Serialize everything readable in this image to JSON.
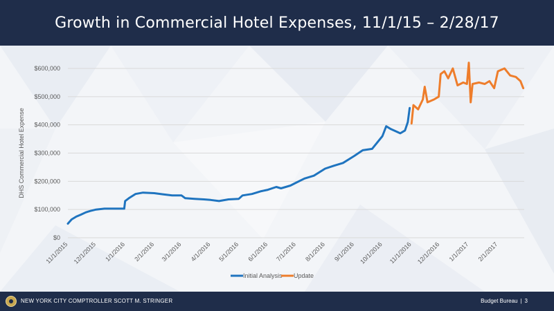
{
  "header": {
    "title": "Growth in Commercial Hotel Expenses, 11/1/15 – 2/28/17"
  },
  "footer": {
    "org": "NEW YORK CITY COMPTROLLER SCOTT M. STRINGER",
    "bureau": "Budget Bureau",
    "page": "3"
  },
  "colors": {
    "initial": "#1f74bf",
    "update": "#ee7d2b",
    "grid": "#d9d9d9",
    "header_bg": "#1f2d4a"
  },
  "chart_data": {
    "type": "line",
    "title": "",
    "xlabel": "",
    "ylabel": "DHS Commercial Hotel Expense",
    "ylim": [
      0,
      600000
    ],
    "yticks": [
      0,
      100000,
      200000,
      300000,
      400000,
      500000,
      600000
    ],
    "ytick_labels": [
      "$0",
      "$100,000",
      "$200,000",
      "$300,000",
      "$400,000",
      "$500,000",
      "$600,000"
    ],
    "xlim": [
      "11/1/2015",
      "3/1/2017"
    ],
    "xtick_labels": [
      "11/1/2015",
      "12/1/2015",
      "1/1/2016",
      "2/1/2016",
      "3/1/2016",
      "4/1/2016",
      "5/1/2016",
      "6/1/2016",
      "7/1/2016",
      "8/1/2016",
      "9/1/2016",
      "10/1/2016",
      "11/1/2016",
      "12/1/2016",
      "1/1/2017",
      "2/1/2017"
    ],
    "grid": true,
    "legend_position": "bottom",
    "series": [
      {
        "name": "Initial Analysis",
        "color": "#1f74bf",
        "points": [
          [
            "11/1/2015",
            50000
          ],
          [
            "11/5/2015",
            65000
          ],
          [
            "11/10/2015",
            75000
          ],
          [
            "11/15/2015",
            82000
          ],
          [
            "11/20/2015",
            90000
          ],
          [
            "11/25/2015",
            95000
          ],
          [
            "12/1/2015",
            100000
          ],
          [
            "12/10/2015",
            103000
          ],
          [
            "12/20/2015",
            103000
          ],
          [
            "12/31/2015",
            103000
          ],
          [
            "1/1/2016",
            130000
          ],
          [
            "1/5/2016",
            140000
          ],
          [
            "1/12/2016",
            155000
          ],
          [
            "1/20/2016",
            160000
          ],
          [
            "2/1/2016",
            158000
          ],
          [
            "2/10/2016",
            154000
          ],
          [
            "2/20/2016",
            150000
          ],
          [
            "3/1/2016",
            150000
          ],
          [
            "3/5/2016",
            140000
          ],
          [
            "3/15/2016",
            138000
          ],
          [
            "3/25/2016",
            136000
          ],
          [
            "4/1/2016",
            134000
          ],
          [
            "4/10/2016",
            130000
          ],
          [
            "4/20/2016",
            136000
          ],
          [
            "5/1/2016",
            138000
          ],
          [
            "5/5/2016",
            150000
          ],
          [
            "5/15/2016",
            155000
          ],
          [
            "5/25/2016",
            165000
          ],
          [
            "6/1/2016",
            170000
          ],
          [
            "6/10/2016",
            180000
          ],
          [
            "6/15/2016",
            175000
          ],
          [
            "6/25/2016",
            185000
          ],
          [
            "7/1/2016",
            195000
          ],
          [
            "7/10/2016",
            210000
          ],
          [
            "7/20/2016",
            220000
          ],
          [
            "8/1/2016",
            245000
          ],
          [
            "8/10/2016",
            255000
          ],
          [
            "8/20/2016",
            265000
          ],
          [
            "9/1/2016",
            290000
          ],
          [
            "9/10/2016",
            310000
          ],
          [
            "9/20/2016",
            315000
          ],
          [
            "10/1/2016",
            360000
          ],
          [
            "10/5/2016",
            395000
          ],
          [
            "10/10/2016",
            385000
          ],
          [
            "10/20/2016",
            370000
          ],
          [
            "10/25/2016",
            380000
          ],
          [
            "10/28/2016",
            410000
          ],
          [
            "10/30/2016",
            460000
          ]
        ]
      },
      {
        "name": "Update",
        "color": "#ee7d2b",
        "points": [
          [
            "11/1/2016",
            405000
          ],
          [
            "11/3/2016",
            470000
          ],
          [
            "11/8/2016",
            455000
          ],
          [
            "11/13/2016",
            490000
          ],
          [
            "11/15/2016",
            535000
          ],
          [
            "11/18/2016",
            480000
          ],
          [
            "11/25/2016",
            490000
          ],
          [
            "11/30/2016",
            500000
          ],
          [
            "12/2/2016",
            580000
          ],
          [
            "12/6/2016",
            590000
          ],
          [
            "12/10/2016",
            565000
          ],
          [
            "12/15/2016",
            600000
          ],
          [
            "12/20/2016",
            540000
          ],
          [
            "12/26/2016",
            550000
          ],
          [
            "12/30/2016",
            545000
          ],
          [
            "1/1/2017",
            620000
          ],
          [
            "1/3/2017",
            480000
          ],
          [
            "1/5/2017",
            545000
          ],
          [
            "1/12/2017",
            550000
          ],
          [
            "1/18/2017",
            545000
          ],
          [
            "1/23/2017",
            555000
          ],
          [
            "1/28/2017",
            530000
          ],
          [
            "2/1/2017",
            590000
          ],
          [
            "2/8/2017",
            600000
          ],
          [
            "2/14/2017",
            575000
          ],
          [
            "2/20/2017",
            570000
          ],
          [
            "2/25/2017",
            555000
          ],
          [
            "2/28/2017",
            530000
          ]
        ]
      }
    ]
  }
}
